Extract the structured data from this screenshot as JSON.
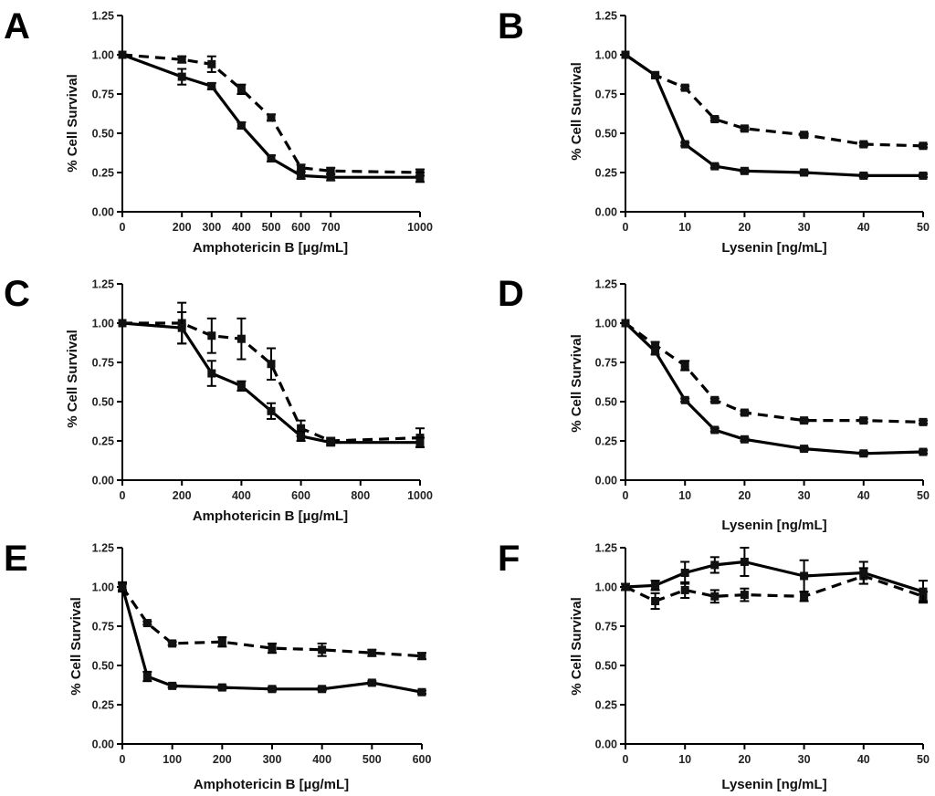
{
  "chart_data": [
    {
      "panel": "A",
      "type": "line",
      "xlabel": "Amphotericin B [µg/mL]",
      "ylabel": "% Cell Survival",
      "xlim": [
        0,
        1000
      ],
      "ylim": [
        0,
        1.25
      ],
      "xticks": [
        0,
        200,
        300,
        400,
        500,
        600,
        700,
        1000
      ],
      "xtick_labels": [
        "0",
        "200",
        "300",
        "400",
        "500",
        "600",
        "700",
        "1000"
      ],
      "yticks": [
        0,
        0.25,
        0.5,
        0.75,
        1.0,
        1.25
      ],
      "ytick_labels": [
        "0.00",
        "0.25",
        "0.50",
        "0.75",
        "1.00",
        "1.25"
      ],
      "series": [
        {
          "name": "solid",
          "style": "solid",
          "x": [
            0,
            200,
            300,
            400,
            500,
            600,
            700,
            1000
          ],
          "y": [
            1.0,
            0.86,
            0.8,
            0.55,
            0.34,
            0.23,
            0.22,
            0.22
          ],
          "err": [
            0,
            0.05,
            0.02,
            0.02,
            0.02,
            0.02,
            0.02,
            0.03
          ]
        },
        {
          "name": "dashed",
          "style": "dashed",
          "x": [
            0,
            200,
            300,
            400,
            500,
            600,
            700,
            1000
          ],
          "y": [
            1.0,
            0.97,
            0.94,
            0.78,
            0.6,
            0.28,
            0.26,
            0.25
          ],
          "err": [
            0,
            0.02,
            0.05,
            0.03,
            0.02,
            0.02,
            0.02,
            0.02
          ]
        }
      ]
    },
    {
      "panel": "B",
      "type": "line",
      "xlabel": "Lysenin [ng/mL]",
      "ylabel": "% Cell Survival",
      "xlim": [
        0,
        50
      ],
      "ylim": [
        0,
        1.25
      ],
      "xticks": [
        0,
        10,
        20,
        30,
        40,
        50
      ],
      "xtick_labels": [
        "0",
        "10",
        "20",
        "30",
        "40",
        "50"
      ],
      "yticks": [
        0,
        0.25,
        0.5,
        0.75,
        1.0,
        1.25
      ],
      "ytick_labels": [
        "0.00",
        "0.25",
        "0.50",
        "0.75",
        "1.00",
        "1.25"
      ],
      "series": [
        {
          "name": "solid",
          "style": "solid",
          "x": [
            0,
            5,
            10,
            15,
            20,
            30,
            40,
            50
          ],
          "y": [
            1.0,
            0.87,
            0.43,
            0.29,
            0.26,
            0.25,
            0.23,
            0.23
          ],
          "err": [
            0,
            0,
            0.01,
            0.01,
            0.01,
            0.01,
            0.01,
            0.01
          ]
        },
        {
          "name": "dashed",
          "style": "dashed",
          "x": [
            0,
            5,
            10,
            15,
            20,
            30,
            40,
            50
          ],
          "y": [
            1.0,
            0.87,
            0.79,
            0.59,
            0.53,
            0.49,
            0.43,
            0.42
          ],
          "err": [
            0,
            0,
            0.01,
            0.01,
            0.01,
            0.01,
            0.01,
            0.01
          ]
        }
      ]
    },
    {
      "panel": "C",
      "type": "line",
      "xlabel": "Amphotericin B [µg/mL]",
      "ylabel": "% Cell Survival",
      "xlim": [
        0,
        1000
      ],
      "ylim": [
        0,
        1.25
      ],
      "xticks": [
        0,
        200,
        400,
        600,
        800,
        1000
      ],
      "xtick_labels": [
        "0",
        "200",
        "400",
        "600",
        "800",
        "1000"
      ],
      "yticks": [
        0,
        0.25,
        0.5,
        0.75,
        1.0,
        1.25
      ],
      "ytick_labels": [
        "0.00",
        "0.25",
        "0.50",
        "0.75",
        "1.00",
        "1.25"
      ],
      "series": [
        {
          "name": "solid",
          "style": "solid",
          "x": [
            0,
            200,
            300,
            400,
            500,
            600,
            700,
            1000
          ],
          "y": [
            1.0,
            0.97,
            0.68,
            0.6,
            0.44,
            0.28,
            0.24,
            0.24
          ],
          "err": [
            0,
            0.1,
            0.08,
            0.03,
            0.05,
            0.03,
            0.02,
            0.03
          ]
        },
        {
          "name": "dashed",
          "style": "dashed",
          "x": [
            0,
            200,
            300,
            400,
            500,
            600,
            700,
            1000
          ],
          "y": [
            1.0,
            1.0,
            0.92,
            0.9,
            0.74,
            0.33,
            0.25,
            0.27
          ],
          "err": [
            0,
            0.13,
            0.11,
            0.13,
            0.1,
            0.05,
            0.02,
            0.06
          ]
        }
      ]
    },
    {
      "panel": "D",
      "type": "line",
      "xlabel": "Lysenin [ng/mL]",
      "ylabel": "% Cell Survival",
      "xlim": [
        0,
        50
      ],
      "ylim": [
        0,
        1.25
      ],
      "xticks": [
        0,
        10,
        20,
        30,
        40,
        50
      ],
      "xtick_labels": [
        "0",
        "10",
        "20",
        "30",
        "40",
        "50"
      ],
      "yticks": [
        0,
        0.25,
        0.5,
        0.75,
        1.0,
        1.25
      ],
      "ytick_labels": [
        "0.00",
        "0.25",
        "0.50",
        "0.75",
        "1.00",
        "1.25"
      ],
      "series": [
        {
          "name": "solid",
          "style": "solid",
          "x": [
            0,
            5,
            10,
            15,
            20,
            30,
            40,
            50
          ],
          "y": [
            1.0,
            0.82,
            0.51,
            0.32,
            0.26,
            0.2,
            0.17,
            0.18
          ],
          "err": [
            0,
            0.02,
            0.01,
            0.01,
            0.01,
            0.01,
            0.01,
            0.01
          ]
        },
        {
          "name": "dashed",
          "style": "dashed",
          "x": [
            0,
            5,
            10,
            15,
            20,
            30,
            40,
            50
          ],
          "y": [
            1.0,
            0.86,
            0.73,
            0.51,
            0.43,
            0.38,
            0.38,
            0.37
          ],
          "err": [
            0,
            0.02,
            0.03,
            0.01,
            0.01,
            0.01,
            0.01,
            0.01
          ]
        }
      ]
    },
    {
      "panel": "E",
      "type": "line",
      "xlabel": "Amphotericin B [µg/mL]",
      "ylabel": "% Cell Survival",
      "xlim": [
        0,
        600
      ],
      "ylim": [
        0,
        1.25
      ],
      "xticks": [
        0,
        100,
        200,
        300,
        400,
        500,
        600
      ],
      "xtick_labels": [
        "0",
        "100",
        "200",
        "300",
        "400",
        "500",
        "600"
      ],
      "yticks": [
        0,
        0.25,
        0.5,
        0.75,
        1.0,
        1.25
      ],
      "ytick_labels": [
        "0.00",
        "0.25",
        "0.50",
        "0.75",
        "1.00",
        "1.25"
      ],
      "series": [
        {
          "name": "solid",
          "style": "solid",
          "x": [
            0,
            50,
            100,
            200,
            300,
            400,
            500,
            600
          ],
          "y": [
            1.0,
            0.43,
            0.37,
            0.36,
            0.35,
            0.35,
            0.39,
            0.33
          ],
          "err": [
            0.03,
            0.03,
            0.01,
            0.01,
            0.01,
            0.01,
            0.01,
            0.01
          ]
        },
        {
          "name": "dashed",
          "style": "dashed",
          "x": [
            0,
            50,
            100,
            200,
            300,
            400,
            500,
            600
          ],
          "y": [
            1.0,
            0.77,
            0.64,
            0.65,
            0.61,
            0.6,
            0.58,
            0.56
          ],
          "err": [
            0.02,
            0.01,
            0.01,
            0.03,
            0.03,
            0.04,
            0.02,
            0.02
          ]
        }
      ]
    },
    {
      "panel": "F",
      "type": "line",
      "xlabel": "Lysenin [ng/mL]",
      "ylabel": "% Cell Survival",
      "xlim": [
        0,
        50
      ],
      "ylim": [
        0,
        1.25
      ],
      "xticks": [
        0,
        10,
        20,
        30,
        40,
        50
      ],
      "xtick_labels": [
        "0",
        "10",
        "20",
        "30",
        "40",
        "50"
      ],
      "yticks": [
        0,
        0.25,
        0.5,
        0.75,
        1.0,
        1.25
      ],
      "ytick_labels": [
        "0.00",
        "0.25",
        "0.50",
        "0.75",
        "1.00",
        "1.25"
      ],
      "series": [
        {
          "name": "solid",
          "style": "solid",
          "x": [
            0,
            5,
            10,
            15,
            20,
            30,
            40,
            50
          ],
          "y": [
            1.0,
            1.01,
            1.09,
            1.14,
            1.16,
            1.07,
            1.09,
            0.97
          ],
          "err": [
            0.02,
            0.03,
            0.07,
            0.05,
            0.09,
            0.1,
            0.07,
            0.07
          ]
        },
        {
          "name": "dashed",
          "style": "dashed",
          "x": [
            0,
            5,
            10,
            15,
            20,
            30,
            40,
            50
          ],
          "y": [
            1.0,
            0.91,
            0.98,
            0.94,
            0.95,
            0.94,
            1.07,
            0.94
          ],
          "err": [
            0.02,
            0.05,
            0.05,
            0.04,
            0.04,
            0.03,
            0.05,
            0.03
          ]
        }
      ]
    }
  ]
}
